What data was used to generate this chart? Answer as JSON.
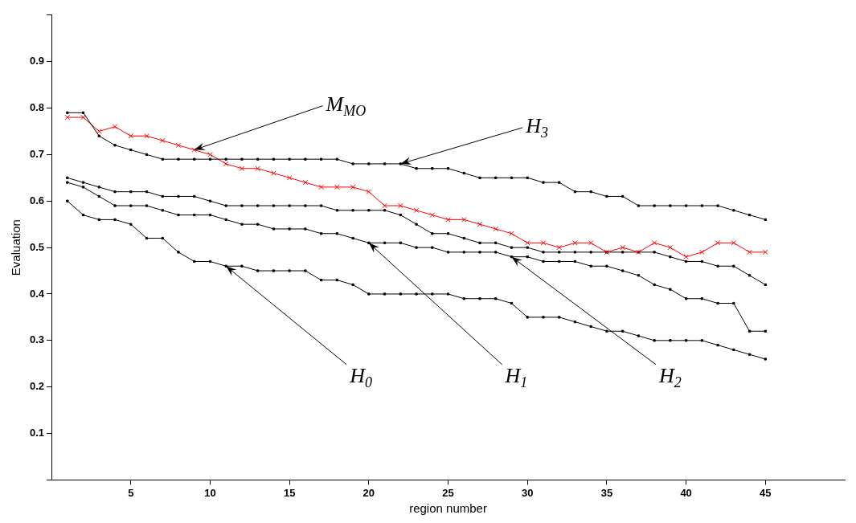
{
  "chart_data": {
    "type": "line",
    "xlabel": "region number",
    "ylabel": "Evaluation",
    "x": [
      1,
      2,
      3,
      4,
      5,
      6,
      7,
      8,
      9,
      10,
      11,
      12,
      13,
      14,
      15,
      16,
      17,
      18,
      19,
      20,
      21,
      22,
      23,
      24,
      25,
      26,
      27,
      28,
      29,
      30,
      31,
      32,
      33,
      34,
      35,
      36,
      37,
      38,
      39,
      40,
      41,
      42,
      43,
      44,
      45
    ],
    "series": [
      {
        "color": "#000000",
        "marker": "square",
        "values": [
          0.79,
          0.79,
          0.74,
          0.72,
          0.71,
          0.7,
          0.69,
          0.69,
          0.69,
          0.69,
          0.69,
          0.69,
          0.69,
          0.69,
          0.69,
          0.69,
          0.69,
          0.69,
          0.68,
          0.68,
          0.68,
          0.68,
          0.67,
          0.67,
          0.67,
          0.66,
          0.65,
          0.65,
          0.65,
          0.65,
          0.64,
          0.64,
          0.62,
          0.62,
          0.61,
          0.61,
          0.59,
          0.59,
          0.59,
          0.59,
          0.59,
          0.59,
          0.58,
          0.57,
          0.56
        ]
      },
      {
        "color": "#ff0000",
        "marker": "cross",
        "values": [
          0.78,
          0.78,
          0.75,
          0.76,
          0.74,
          0.74,
          0.73,
          0.72,
          0.71,
          0.7,
          0.68,
          0.67,
          0.67,
          0.66,
          0.65,
          0.64,
          0.63,
          0.63,
          0.63,
          0.62,
          0.59,
          0.59,
          0.58,
          0.57,
          0.56,
          0.56,
          0.55,
          0.54,
          0.53,
          0.51,
          0.51,
          0.5,
          0.51,
          0.51,
          0.49,
          0.5,
          0.49,
          0.51,
          0.5,
          0.48,
          0.49,
          0.51,
          0.51,
          0.49,
          0.49
        ]
      },
      {
        "color": "#000000",
        "marker": "square",
        "values": [
          0.65,
          0.64,
          0.63,
          0.62,
          0.62,
          0.62,
          0.61,
          0.61,
          0.61,
          0.6,
          0.59,
          0.59,
          0.59,
          0.59,
          0.59,
          0.59,
          0.59,
          0.58,
          0.58,
          0.58,
          0.58,
          0.57,
          0.55,
          0.53,
          0.53,
          0.52,
          0.51,
          0.51,
          0.5,
          0.5,
          0.49,
          0.49,
          0.49,
          0.49,
          0.49,
          0.49,
          0.49,
          0.49,
          0.48,
          0.47,
          0.47,
          0.46,
          0.46,
          0.44,
          0.42
        ]
      },
      {
        "color": "#000000",
        "marker": "square",
        "values": [
          0.64,
          0.63,
          0.61,
          0.59,
          0.59,
          0.59,
          0.58,
          0.57,
          0.57,
          0.57,
          0.56,
          0.55,
          0.55,
          0.54,
          0.54,
          0.54,
          0.53,
          0.53,
          0.52,
          0.51,
          0.51,
          0.51,
          0.5,
          0.5,
          0.49,
          0.49,
          0.49,
          0.49,
          0.48,
          0.48,
          0.47,
          0.47,
          0.47,
          0.46,
          0.46,
          0.45,
          0.44,
          0.42,
          0.41,
          0.39,
          0.39,
          0.38,
          0.38,
          0.32,
          0.32
        ]
      },
      {
        "color": "#000000",
        "marker": "square",
        "values": [
          0.6,
          0.57,
          0.56,
          0.56,
          0.55,
          0.52,
          0.52,
          0.49,
          0.47,
          0.47,
          0.46,
          0.46,
          0.45,
          0.45,
          0.45,
          0.45,
          0.43,
          0.43,
          0.42,
          0.4,
          0.4,
          0.4,
          0.4,
          0.4,
          0.4,
          0.39,
          0.39,
          0.39,
          0.38,
          0.35,
          0.35,
          0.35,
          0.34,
          0.33,
          0.32,
          0.32,
          0.31,
          0.3,
          0.3,
          0.3,
          0.3,
          0.29,
          0.28,
          0.27,
          0.26
        ]
      }
    ],
    "xlim": [
      0,
      50
    ],
    "xticks": [
      5,
      10,
      15,
      20,
      25,
      30,
      35,
      40,
      45
    ],
    "ylim": [
      0,
      1
    ],
    "yticks": [
      {
        "value": 0,
        "label": null
      },
      0.1,
      0.2,
      0.3,
      0.4,
      0.5,
      0.6,
      0.7,
      0.8,
      0.9,
      {
        "value": 1,
        "label": null
      }
    ],
    "grid": false,
    "legend": false,
    "annotations": [
      {
        "text": "M$_{MO}$",
        "x": 9,
        "y": 0.71
      },
      {
        "text": "H$_{3}$",
        "x": 22,
        "y": 0.68
      },
      {
        "text": "H$_{0}$",
        "x": 11,
        "y": 0.46
      },
      {
        "text": "H$_{1}$",
        "x": 20,
        "y": 0.51
      },
      {
        "text": "H$_{2}$",
        "x": 29,
        "y": 0.48
      }
    ]
  }
}
